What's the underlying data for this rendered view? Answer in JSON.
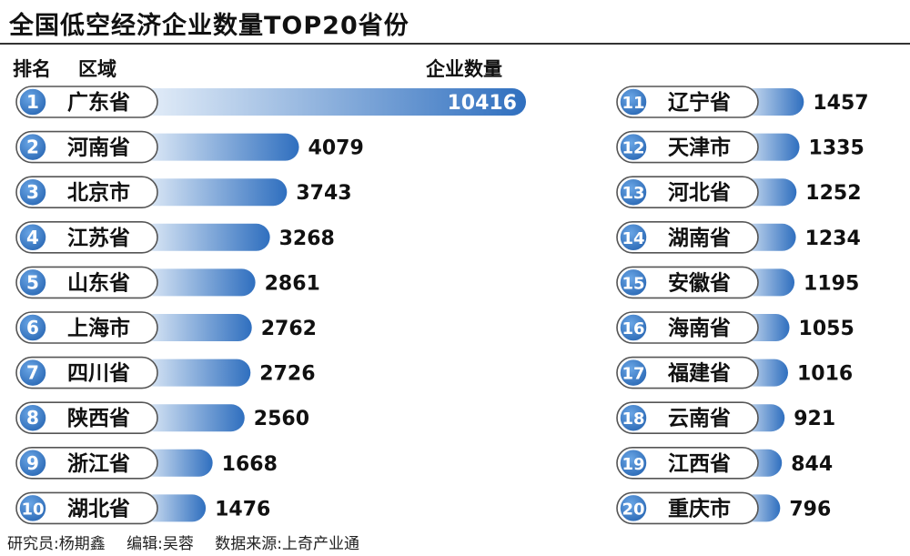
{
  "title": "全国低空经济企业数量TOP20省份",
  "headers": {
    "rank": "排名",
    "region": "区域",
    "count": "企业数量"
  },
  "chart_data": {
    "type": "bar",
    "orientation": "horizontal",
    "title": "全国低空经济企业数量TOP20省份",
    "xlabel": "企业数量",
    "ylabel": "区域",
    "xlim": [
      0,
      10416
    ],
    "categories": [
      "广东省",
      "河南省",
      "北京市",
      "江苏省",
      "山东省",
      "上海市",
      "四川省",
      "陕西省",
      "浙江省",
      "湖北省",
      "辽宁省",
      "天津市",
      "河北省",
      "湖南省",
      "安徽省",
      "海南省",
      "福建省",
      "云南省",
      "江西省",
      "重庆市"
    ],
    "ranks": [
      1,
      2,
      3,
      4,
      5,
      6,
      7,
      8,
      9,
      10,
      11,
      12,
      13,
      14,
      15,
      16,
      17,
      18,
      19,
      20
    ],
    "values": [
      10416,
      4079,
      3743,
      3268,
      2861,
      2762,
      2726,
      2560,
      1668,
      1476,
      1457,
      1335,
      1252,
      1234,
      1195,
      1055,
      1016,
      921,
      844,
      796
    ],
    "value_labels": [
      "10416",
      "4079",
      "3743",
      "3268",
      "2861",
      "2762",
      "2726",
      "2560",
      "1668",
      "1476",
      "1457",
      "1335",
      "1252",
      "1234",
      "1195",
      "1055",
      "1016",
      "921",
      "844",
      "796"
    ],
    "grid": false,
    "legend": "none"
  },
  "footer": {
    "researcher": "研究员:杨期鑫",
    "editor": "编辑:吴蓉",
    "source": "数据来源:上奇产业通"
  },
  "colors": {
    "bar_dark": "#2f6fbf",
    "bar_light": "#e6eff9",
    "rank_circle": "#2a68b4",
    "pill_bg": "#ffffff",
    "pill_border": "#555555"
  }
}
